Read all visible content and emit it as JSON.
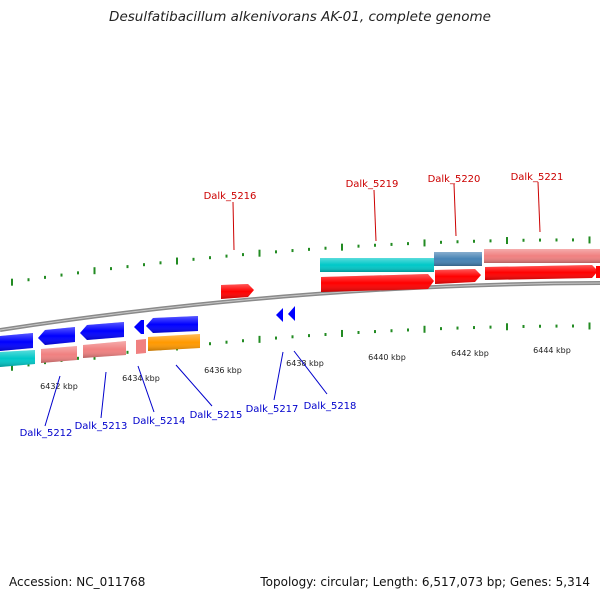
{
  "title": "Desulfatibacillum alkenivorans AK-01, complete genome",
  "footer": {
    "accession": "Accession: NC_011768",
    "summary": "Topology: circular; Length: 6,517,073 bp; Genes: 5,314"
  },
  "colors": {
    "forward_gene": "#ff0000",
    "reverse_gene": "#0000ff",
    "forward_cds": "#f08080",
    "cyan_feature": "#00c8c8",
    "steel_feature": "#4682b4",
    "orange_feature": "#ff9900",
    "backbone": "#808080",
    "tick": "#228b22",
    "forward_label": "#cc0000",
    "reverse_label": "#0000cc"
  },
  "scale": {
    "ticks": [
      "6432 kbp",
      "6434 kbp",
      "6436 kbp",
      "6438 kbp",
      "6440 kbp",
      "6442 kbp",
      "6444 kbp"
    ]
  },
  "forward_labels": [
    "Dalk_5216",
    "Dalk_5219",
    "Dalk_5220",
    "Dalk_5221"
  ],
  "reverse_labels": [
    "Dalk_5212",
    "Dalk_5213",
    "Dalk_5214",
    "Dalk_5215",
    "Dalk_5217",
    "Dalk_5218"
  ]
}
